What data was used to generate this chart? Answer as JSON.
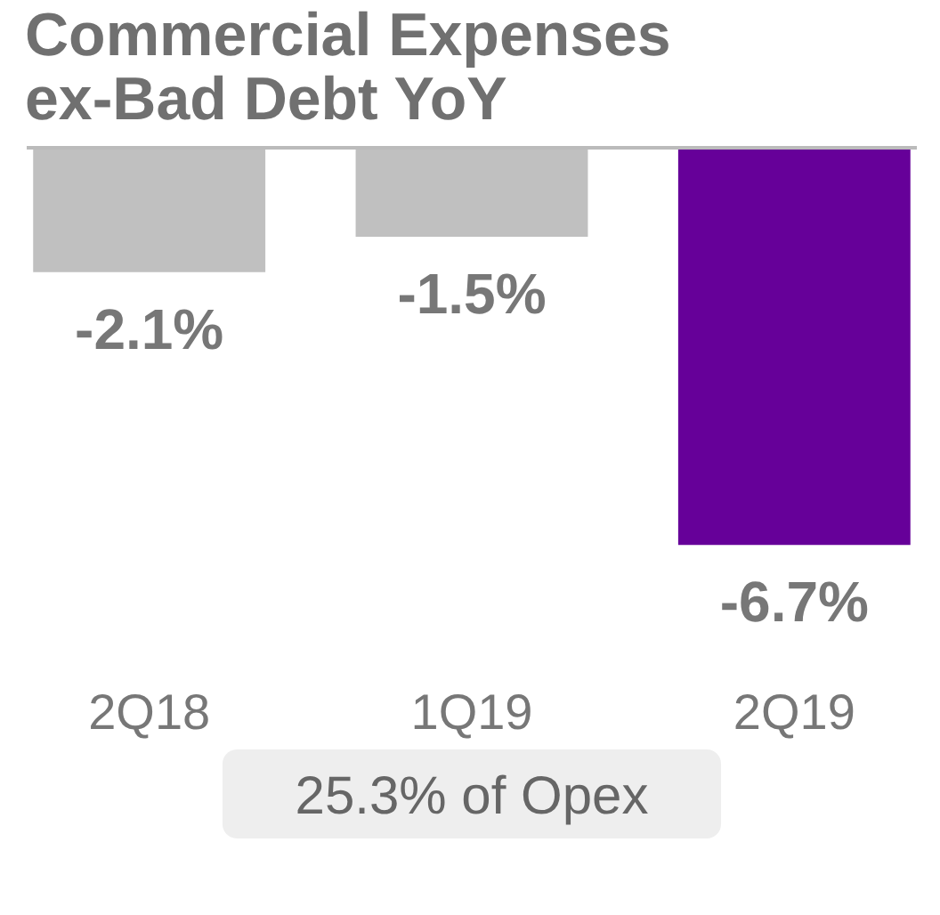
{
  "chart_data": {
    "type": "bar",
    "title": "Commercial Expenses ex-Bad Debt YoY",
    "categories": [
      "2Q18",
      "1Q19",
      "2Q19"
    ],
    "values": [
      -2.1,
      -1.5,
      -6.7
    ],
    "colors": [
      "#c0c0c0",
      "#c0c0c0",
      "#660099"
    ],
    "value_labels": [
      "-2.1%",
      "-1.5%",
      "-6.7%"
    ],
    "annotations": [
      "25.3% of Opex"
    ]
  }
}
